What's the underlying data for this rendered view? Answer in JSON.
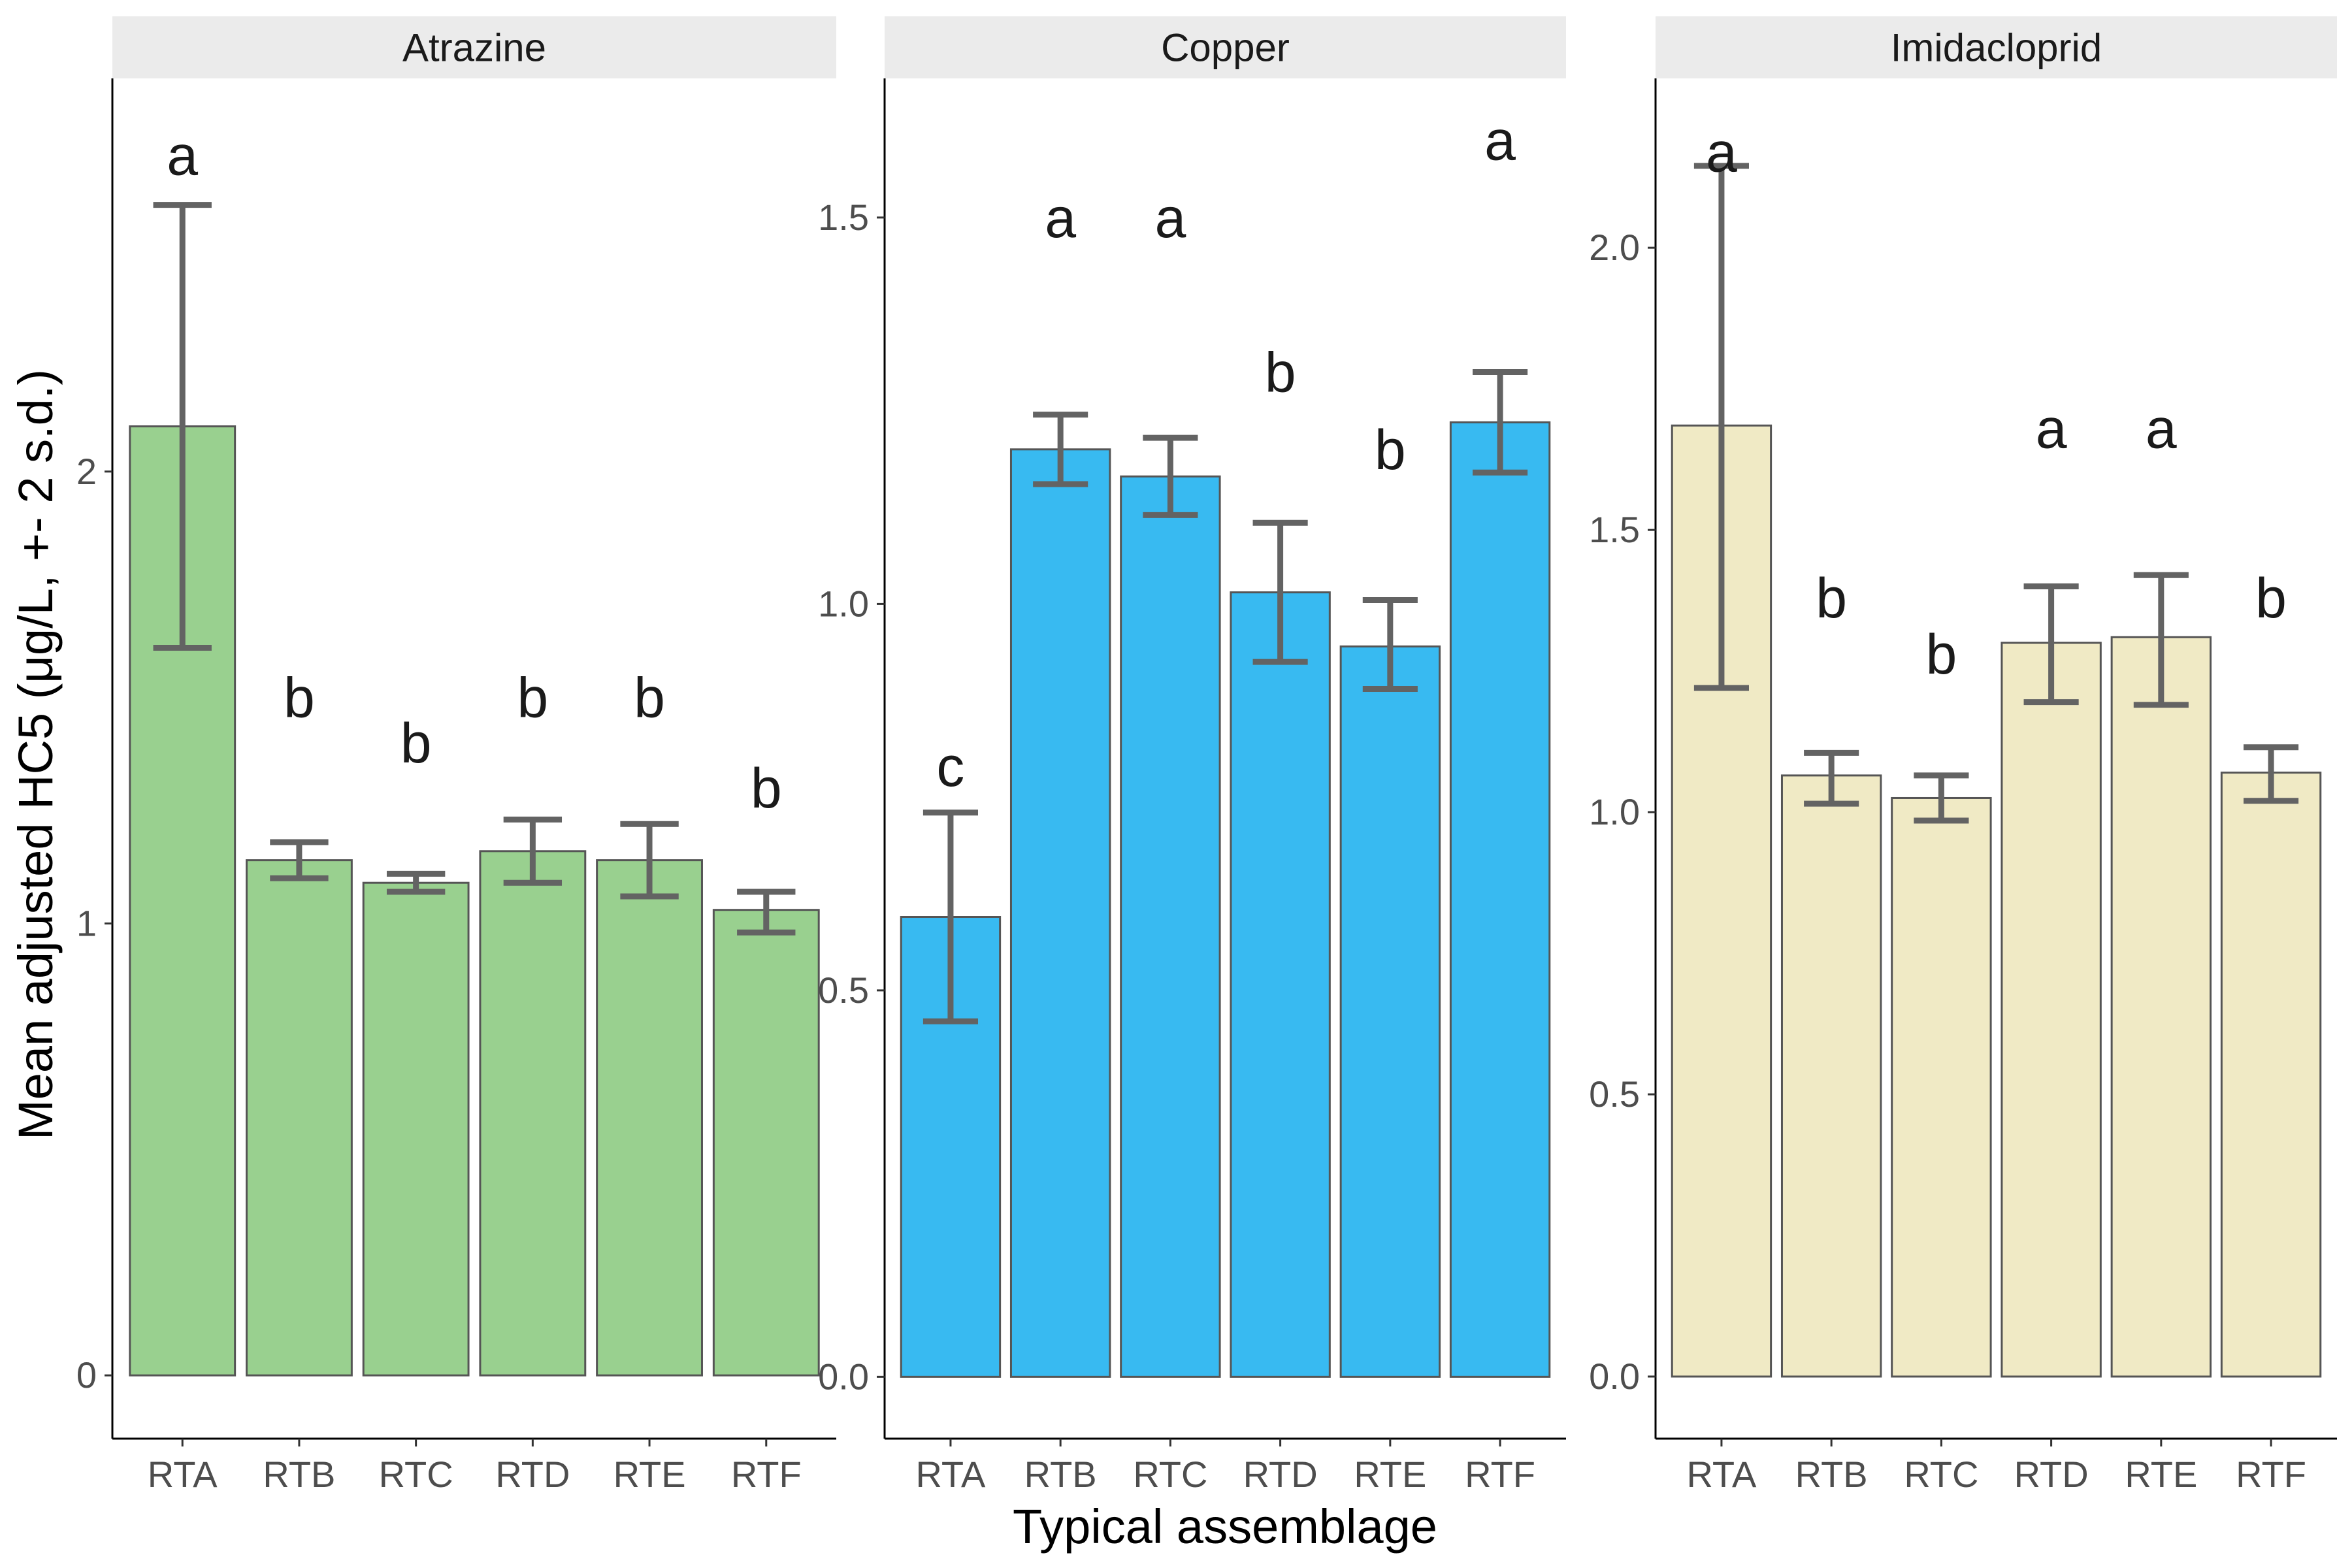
{
  "chart_data": {
    "type": "bar",
    "xlabel": "Typical assemblage",
    "ylabel": "Mean adjusted HC5 (μg/L, +- 2 s.d.)",
    "categories": [
      "RTA",
      "RTB",
      "RTC",
      "RTD",
      "RTE",
      "RTF"
    ],
    "error_bar_color": "#636363",
    "bar_outline_color": "#555555",
    "strip_color": "#ebebeb",
    "panels": [
      {
        "title": "Atrazine",
        "color": "#99d08f",
        "ylim": [
          -0.14,
          2.87
        ],
        "yticks": [
          0,
          1,
          2
        ],
        "ytick_labels": [
          "0",
          "1",
          "2"
        ],
        "values": [
          2.1,
          1.14,
          1.09,
          1.16,
          1.14,
          1.03
        ],
        "err_low": [
          1.61,
          1.1,
          1.07,
          1.09,
          1.06,
          0.98
        ],
        "err_high": [
          2.59,
          1.18,
          1.11,
          1.23,
          1.22,
          1.07
        ],
        "letters": [
          "a",
          "b",
          "b",
          "b",
          "b",
          "b"
        ],
        "letter_y": [
          2.7,
          1.5,
          1.4,
          1.5,
          1.5,
          1.3
        ]
      },
      {
        "title": "Copper",
        "color": "#38baf1",
        "ylim": [
          -0.08,
          1.68
        ],
        "yticks": [
          0.0,
          0.5,
          1.0,
          1.5
        ],
        "ytick_labels": [
          "0.0",
          "0.5",
          "1.0",
          "1.5"
        ],
        "values": [
          0.595,
          1.2,
          1.165,
          1.015,
          0.945,
          1.235
        ],
        "err_low": [
          0.46,
          1.155,
          1.115,
          0.925,
          0.89,
          1.17
        ],
        "err_high": [
          0.73,
          1.245,
          1.215,
          1.105,
          1.005,
          1.3
        ],
        "letters": [
          "c",
          "a",
          "a",
          "b",
          "b",
          "a"
        ],
        "letter_y": [
          0.79,
          1.5,
          1.5,
          1.3,
          1.2,
          1.6
        ]
      },
      {
        "title": "Imidacloprid",
        "color": "#f0eac5",
        "ylim": [
          -0.11,
          2.3
        ],
        "yticks": [
          0.0,
          0.5,
          1.0,
          1.5,
          2.0
        ],
        "ytick_labels": [
          "0.0",
          "0.5",
          "1.0",
          "1.5",
          "2.0"
        ],
        "values": [
          1.685,
          1.065,
          1.025,
          1.3,
          1.31,
          1.07
        ],
        "err_low": [
          1.22,
          1.015,
          0.985,
          1.195,
          1.19,
          1.02
        ],
        "err_high": [
          2.145,
          1.105,
          1.065,
          1.4,
          1.42,
          1.115
        ],
        "letters": [
          "a",
          "b",
          "b",
          "a",
          "a",
          "b"
        ],
        "letter_y": [
          2.17,
          1.38,
          1.28,
          1.68,
          1.68,
          1.38
        ]
      }
    ]
  }
}
